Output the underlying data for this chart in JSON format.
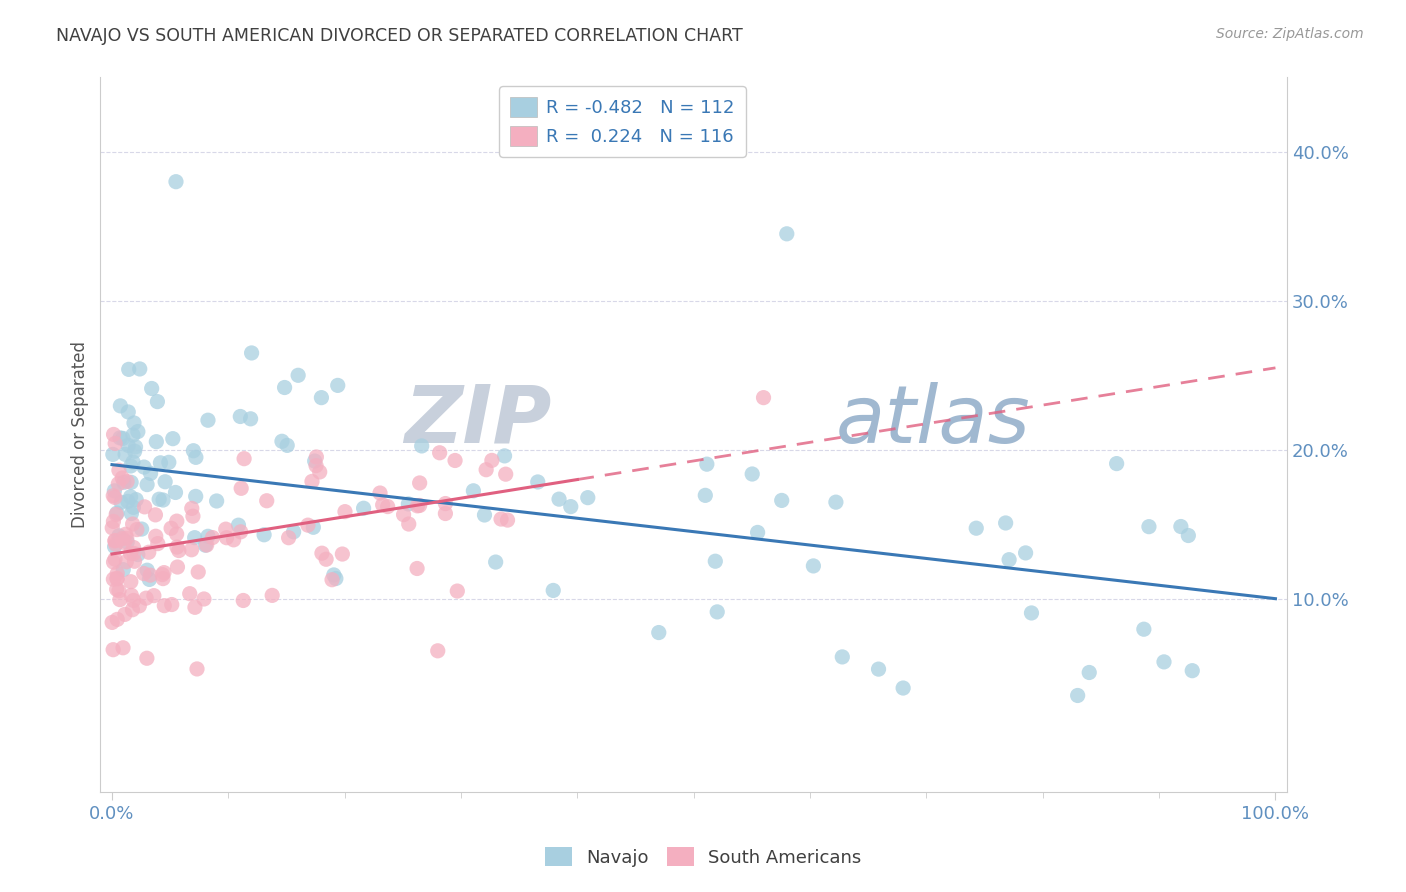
{
  "title": "NAVAJO VS SOUTH AMERICAN DIVORCED OR SEPARATED CORRELATION CHART",
  "source": "Source: ZipAtlas.com",
  "ylabel": "Divorced or Separated",
  "legend_labels": [
    "Navajo",
    "South Americans"
  ],
  "blue_R": -0.482,
  "blue_N": 112,
  "pink_R": 0.224,
  "pink_N": 116,
  "blue_color": "#a8cfe0",
  "pink_color": "#f4afc0",
  "blue_line_color": "#3a78b5",
  "pink_line_color": "#e06080",
  "watermark_ZIP": "ZIP",
  "watermark_atlas": "atlas",
  "watermark_ZIP_color": "#c8d0dc",
  "watermark_atlas_color": "#a0b8d0",
  "background_color": "#ffffff",
  "grid_color": "#d8d8e8",
  "title_color": "#404040",
  "axis_tick_color": "#6090c0",
  "blue_line_y0": 19.0,
  "blue_line_y1": 10.0,
  "pink_line_y0": 13.0,
  "pink_line_y1": 18.0,
  "pink_dash_start_x": 40,
  "yticks": [
    10,
    20,
    30,
    40
  ],
  "xlim": [
    -1,
    101
  ],
  "ylim": [
    -3,
    45
  ]
}
